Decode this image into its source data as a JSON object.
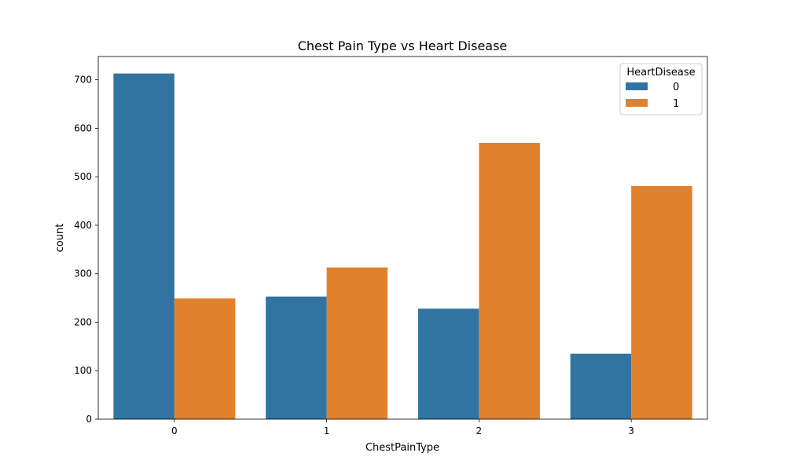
{
  "chart_data": {
    "type": "bar",
    "title": "Chest Pain Type vs Heart Disease",
    "xlabel": "ChestPainType",
    "ylabel": "count",
    "categories": [
      "0",
      "1",
      "2",
      "3"
    ],
    "series": [
      {
        "name": "0",
        "color": "#3274a1",
        "values": [
          713,
          253,
          228,
          135
        ]
      },
      {
        "name": "1",
        "color": "#e1812c",
        "values": [
          249,
          313,
          570,
          481
        ]
      }
    ],
    "ylim": [
      0,
      748
    ],
    "yticks": [
      0,
      100,
      200,
      300,
      400,
      500,
      600,
      700
    ],
    "grid": false,
    "legend": {
      "title": "HeartDisease",
      "placement": "top-right"
    }
  }
}
